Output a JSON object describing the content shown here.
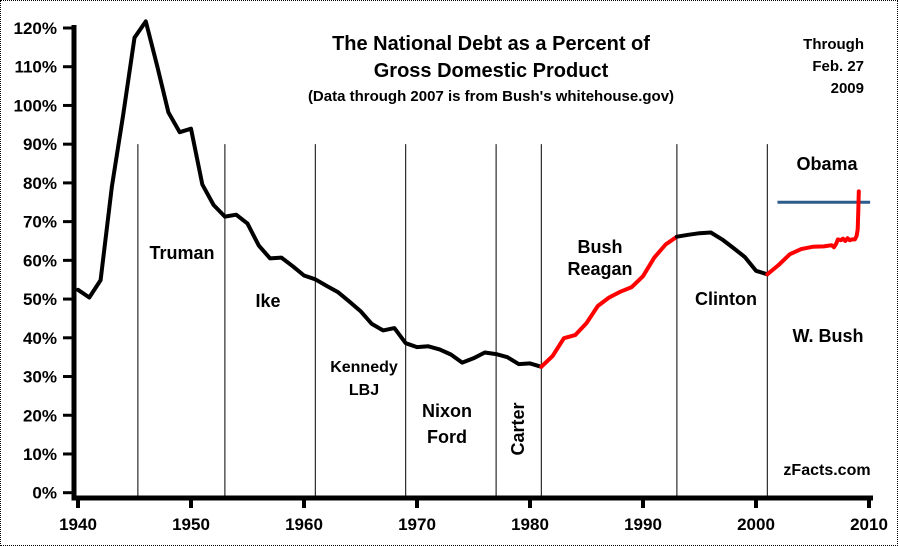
{
  "title": {
    "line1": "The National Debt as a Percent of",
    "line2": "Gross Domestic Product",
    "subtitle": "(Data through 2007 is from Bush's whitehouse.gov)"
  },
  "through_note": {
    "line1": "Through",
    "line2": "Feb. 27",
    "line3": "2009"
  },
  "watermark": "zFacts.com",
  "presidents": {
    "truman": "Truman",
    "ike": "Ike",
    "kennedy": "Kennedy",
    "lbj": "LBJ",
    "nixon": "Nixon",
    "ford": "Ford",
    "carter": "Carter",
    "bush41": "Bush",
    "reagan": "Reagan",
    "clinton": "Clinton",
    "obama": "Obama",
    "wbush": "W. Bush"
  },
  "colors": {
    "line_black": "#000000",
    "line_red": "#ff0000",
    "marker_blue": "#2e5c8a",
    "axis": "#000000"
  },
  "chart_data": {
    "type": "line",
    "title": "The National Debt as a Percent of Gross Domestic Product",
    "subtitle": "(Data through 2007 is from Bush's whitehouse.gov)",
    "xlabel": "",
    "ylabel": "",
    "xlim": [
      1940,
      2010.3
    ],
    "ylim": [
      0,
      122
    ],
    "grid": false,
    "legend": "none",
    "x_ticks": [
      1940,
      1950,
      1960,
      1970,
      1980,
      1990,
      2000,
      2010
    ],
    "y_tick_values": [
      0,
      10,
      20,
      30,
      40,
      50,
      60,
      70,
      80,
      90,
      100,
      110,
      120
    ],
    "y_tick_labels": [
      "0%",
      "10%",
      "20%",
      "30%",
      "40%",
      "50%",
      "60%",
      "70%",
      "80%",
      "90%",
      "100%",
      "110%",
      "120%"
    ],
    "president_dividers": [
      1945.3,
      1953,
      1961,
      1969,
      1977,
      1981,
      1993,
      2001
    ],
    "divider_top_value": 90,
    "marker_line": {
      "value": 75,
      "x_start": 2001.9,
      "x_end": 2010.1,
      "color": "#2e5c8a"
    },
    "series": [
      {
        "name": "debt-pct-gdp-1940-1981-black",
        "color": "#000000",
        "points": [
          [
            1940,
            52.4
          ],
          [
            1941,
            50.4
          ],
          [
            1942,
            54.9
          ],
          [
            1943,
            79.1
          ],
          [
            1944,
            97.6
          ],
          [
            1945,
            117.5
          ],
          [
            1946,
            121.7
          ],
          [
            1947,
            110.3
          ],
          [
            1948,
            98.2
          ],
          [
            1949,
            93.1
          ],
          [
            1950,
            94.0
          ],
          [
            1951,
            79.6
          ],
          [
            1952,
            74.3
          ],
          [
            1953,
            71.3
          ],
          [
            1954,
            71.8
          ],
          [
            1955,
            69.5
          ],
          [
            1956,
            63.8
          ],
          [
            1957,
            60.5
          ],
          [
            1958,
            60.7
          ],
          [
            1959,
            58.5
          ],
          [
            1960,
            56.1
          ],
          [
            1961,
            55.1
          ],
          [
            1962,
            53.4
          ],
          [
            1963,
            51.8
          ],
          [
            1964,
            49.4
          ],
          [
            1965,
            46.9
          ],
          [
            1966,
            43.6
          ],
          [
            1967,
            41.9
          ],
          [
            1968,
            42.5
          ],
          [
            1969,
            38.6
          ],
          [
            1970,
            37.6
          ],
          [
            1971,
            37.8
          ],
          [
            1972,
            37.0
          ],
          [
            1973,
            35.7
          ],
          [
            1974,
            33.6
          ],
          [
            1975,
            34.7
          ],
          [
            1976,
            36.2
          ],
          [
            1977,
            35.8
          ],
          [
            1978,
            35.0
          ],
          [
            1979,
            33.2
          ],
          [
            1980,
            33.4
          ],
          [
            1981,
            32.5
          ]
        ]
      },
      {
        "name": "debt-pct-gdp-1981-1993-red",
        "color": "#ff0000",
        "points": [
          [
            1981,
            32.5
          ],
          [
            1982,
            35.3
          ],
          [
            1983,
            39.9
          ],
          [
            1984,
            40.7
          ],
          [
            1985,
            43.8
          ],
          [
            1986,
            48.2
          ],
          [
            1987,
            50.4
          ],
          [
            1988,
            51.9
          ],
          [
            1989,
            53.1
          ],
          [
            1990,
            55.9
          ],
          [
            1991,
            60.7
          ],
          [
            1992,
            64.1
          ],
          [
            1993,
            66.1
          ]
        ]
      },
      {
        "name": "debt-pct-gdp-1993-2001-black",
        "color": "#000000",
        "points": [
          [
            1993,
            66.1
          ],
          [
            1994,
            66.6
          ],
          [
            1995,
            67.0
          ],
          [
            1996,
            67.2
          ],
          [
            1997,
            65.4
          ],
          [
            1998,
            63.2
          ],
          [
            1999,
            60.9
          ],
          [
            2000,
            57.3
          ],
          [
            2001,
            56.4
          ]
        ]
      },
      {
        "name": "debt-pct-gdp-2001-2009-red",
        "color": "#ff0000",
        "points": [
          [
            2001,
            56.4
          ],
          [
            2002,
            58.8
          ],
          [
            2003,
            61.6
          ],
          [
            2004,
            62.9
          ],
          [
            2005,
            63.5
          ],
          [
            2006,
            63.6
          ],
          [
            2006.7,
            63.9
          ],
          [
            2006.9,
            63.4
          ],
          [
            2007.1,
            64.3
          ],
          [
            2007.25,
            65.4
          ],
          [
            2007.5,
            65.2
          ],
          [
            2007.7,
            65.6
          ],
          [
            2007.9,
            65.0
          ],
          [
            2008.1,
            65.7
          ],
          [
            2008.3,
            65.2
          ],
          [
            2008.5,
            65.4
          ],
          [
            2008.75,
            65.4
          ],
          [
            2008.9,
            66.3
          ],
          [
            2009.0,
            68.0
          ],
          [
            2009.04,
            72.0
          ],
          [
            2009.1,
            77.8
          ]
        ]
      }
    ]
  }
}
